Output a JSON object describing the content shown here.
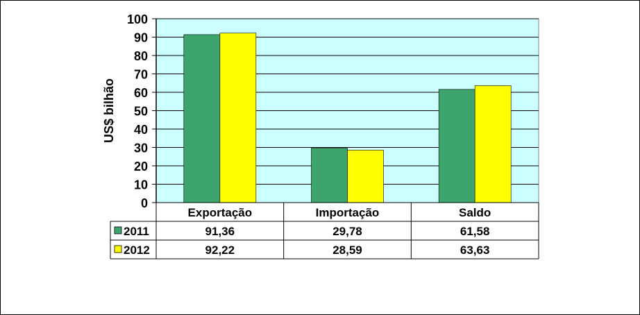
{
  "chart_data": {
    "type": "bar",
    "ylabel": "US$ bilhão",
    "ylim": [
      0,
      100
    ],
    "ytick_step": 10,
    "grid": true,
    "categories": [
      "Exportação",
      "Importação",
      "Saldo"
    ],
    "series": [
      {
        "name": "2011",
        "color": "#3DA46E",
        "values": [
          91.36,
          29.78,
          61.58
        ],
        "labels": [
          "91,36",
          "29,78",
          "61,58"
        ]
      },
      {
        "name": "2012",
        "color": "#FFFF00",
        "values": [
          92.22,
          28.59,
          63.63
        ],
        "labels": [
          "92,22",
          "28,59",
          "63,63"
        ]
      }
    ],
    "plot_background": "#CCFFFF",
    "legend": "data-table"
  }
}
